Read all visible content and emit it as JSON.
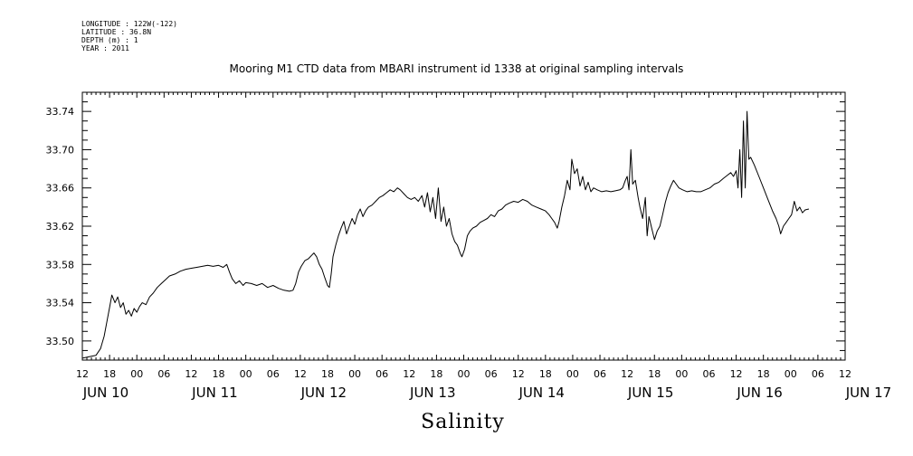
{
  "header": {
    "longitude": "LONGITUDE : 122W(-122)",
    "latitude": "LATITUDE : 36.8N",
    "depth": "DEPTH (m) : 1",
    "year": "YEAR : 2011"
  },
  "chart_data": {
    "type": "line",
    "title": "Mooring M1 CTD data from MBARI instrument id 1338 at original sampling intervals",
    "xlabel": "Salinity",
    "ylabel": "",
    "x_unit": "hours since 2011-06-10 12:00 (ticks every 6 h)",
    "xlim": [
      0,
      168
    ],
    "ylim": [
      33.48,
      33.76
    ],
    "yticks": [
      33.5,
      33.54,
      33.58,
      33.62,
      33.66,
      33.7,
      33.74
    ],
    "ytick_labels": [
      "33.50",
      "33.54",
      "33.58",
      "33.62",
      "33.66",
      "33.70",
      "33.74"
    ],
    "hour_tick_labels": [
      "12",
      "18",
      "00",
      "06",
      "12",
      "18",
      "00",
      "06",
      "12",
      "18",
      "00",
      "06",
      "12",
      "18",
      "00",
      "06",
      "12",
      "18",
      "00",
      "06",
      "12",
      "18",
      "00",
      "06",
      "12",
      "18",
      "00",
      "06",
      "12"
    ],
    "day_labels": [
      {
        "label": "JUN 10",
        "hour": 0
      },
      {
        "label": "JUN 11",
        "hour": 24
      },
      {
        "label": "JUN 12",
        "hour": 48
      },
      {
        "label": "JUN 13",
        "hour": 72
      },
      {
        "label": "JUN 14",
        "hour": 96
      },
      {
        "label": "JUN 15",
        "hour": 120
      },
      {
        "label": "JUN 16",
        "hour": 144
      },
      {
        "label": "JUN 17",
        "hour": 168
      }
    ],
    "grid": false,
    "series": [
      {
        "name": "",
        "points": [
          [
            0.0,
            33.482
          ],
          [
            2.0,
            33.484
          ],
          [
            3.0,
            33.485
          ],
          [
            4.0,
            33.492
          ],
          [
            4.8,
            33.505
          ],
          [
            5.4,
            33.52
          ],
          [
            6.0,
            33.535
          ],
          [
            6.5,
            33.548
          ],
          [
            7.2,
            33.54
          ],
          [
            7.8,
            33.546
          ],
          [
            8.4,
            33.535
          ],
          [
            9.0,
            33.54
          ],
          [
            9.6,
            33.528
          ],
          [
            10.2,
            33.532
          ],
          [
            10.8,
            33.526
          ],
          [
            11.4,
            33.534
          ],
          [
            12.0,
            33.53
          ],
          [
            12.6,
            33.536
          ],
          [
            13.2,
            33.54
          ],
          [
            14.0,
            33.538
          ],
          [
            14.8,
            33.546
          ],
          [
            15.6,
            33.55
          ],
          [
            16.5,
            33.556
          ],
          [
            17.4,
            33.56
          ],
          [
            18.3,
            33.564
          ],
          [
            19.2,
            33.568
          ],
          [
            20.4,
            33.57
          ],
          [
            21.6,
            33.573
          ],
          [
            22.8,
            33.575
          ],
          [
            24.0,
            33.576
          ],
          [
            25.2,
            33.577
          ],
          [
            26.4,
            33.578
          ],
          [
            27.6,
            33.579
          ],
          [
            28.8,
            33.578
          ],
          [
            30.0,
            33.579
          ],
          [
            31.0,
            33.577
          ],
          [
            31.8,
            33.58
          ],
          [
            32.4,
            33.572
          ],
          [
            33.0,
            33.565
          ],
          [
            33.8,
            33.56
          ],
          [
            34.6,
            33.563
          ],
          [
            35.4,
            33.558
          ],
          [
            36.0,
            33.561
          ],
          [
            37.2,
            33.56
          ],
          [
            38.4,
            33.558
          ],
          [
            39.6,
            33.56
          ],
          [
            40.8,
            33.556
          ],
          [
            42.0,
            33.558
          ],
          [
            43.2,
            33.555
          ],
          [
            44.4,
            33.553
          ],
          [
            45.6,
            33.552
          ],
          [
            46.4,
            33.553
          ],
          [
            47.0,
            33.56
          ],
          [
            47.6,
            33.572
          ],
          [
            48.2,
            33.578
          ],
          [
            49.0,
            33.584
          ],
          [
            49.8,
            33.586
          ],
          [
            50.6,
            33.59
          ],
          [
            51.0,
            33.592
          ],
          [
            51.6,
            33.588
          ],
          [
            52.2,
            33.58
          ],
          [
            52.8,
            33.575
          ],
          [
            53.4,
            33.566
          ],
          [
            54.0,
            33.558
          ],
          [
            54.4,
            33.556
          ],
          [
            54.8,
            33.57
          ],
          [
            55.2,
            33.588
          ],
          [
            55.8,
            33.6
          ],
          [
            56.4,
            33.61
          ],
          [
            57.0,
            33.618
          ],
          [
            57.6,
            33.625
          ],
          [
            58.2,
            33.612
          ],
          [
            58.8,
            33.62
          ],
          [
            59.4,
            33.628
          ],
          [
            60.0,
            33.622
          ],
          [
            60.6,
            33.632
          ],
          [
            61.2,
            33.638
          ],
          [
            61.8,
            33.63
          ],
          [
            62.4,
            33.636
          ],
          [
            63.0,
            33.64
          ],
          [
            63.8,
            33.642
          ],
          [
            64.6,
            33.646
          ],
          [
            65.4,
            33.65
          ],
          [
            66.2,
            33.652
          ],
          [
            67.0,
            33.655
          ],
          [
            67.8,
            33.658
          ],
          [
            68.6,
            33.656
          ],
          [
            69.4,
            33.66
          ],
          [
            70.0,
            33.658
          ],
          [
            70.8,
            33.654
          ],
          [
            71.6,
            33.65
          ],
          [
            72.4,
            33.648
          ],
          [
            73.2,
            33.65
          ],
          [
            74.0,
            33.646
          ],
          [
            74.8,
            33.652
          ],
          [
            75.4,
            33.64
          ],
          [
            76.0,
            33.655
          ],
          [
            76.6,
            33.635
          ],
          [
            77.2,
            33.65
          ],
          [
            77.8,
            33.628
          ],
          [
            78.4,
            33.66
          ],
          [
            79.0,
            33.625
          ],
          [
            79.6,
            33.64
          ],
          [
            80.2,
            33.62
          ],
          [
            80.8,
            33.628
          ],
          [
            81.4,
            33.612
          ],
          [
            82.0,
            33.604
          ],
          [
            82.6,
            33.6
          ],
          [
            83.2,
            33.592
          ],
          [
            83.6,
            33.588
          ],
          [
            84.2,
            33.596
          ],
          [
            84.8,
            33.61
          ],
          [
            85.4,
            33.615
          ],
          [
            86.0,
            33.618
          ],
          [
            86.8,
            33.62
          ],
          [
            87.6,
            33.624
          ],
          [
            88.4,
            33.626
          ],
          [
            89.2,
            33.628
          ],
          [
            90.0,
            33.632
          ],
          [
            90.8,
            33.63
          ],
          [
            91.6,
            33.636
          ],
          [
            92.4,
            33.638
          ],
          [
            93.2,
            33.642
          ],
          [
            94.0,
            33.644
          ],
          [
            95.0,
            33.646
          ],
          [
            96.0,
            33.645
          ],
          [
            97.0,
            33.648
          ],
          [
            98.0,
            33.646
          ],
          [
            99.0,
            33.642
          ],
          [
            100.0,
            33.64
          ],
          [
            101.0,
            33.638
          ],
          [
            102.0,
            33.636
          ],
          [
            102.8,
            33.632
          ],
          [
            103.4,
            33.628
          ],
          [
            104.0,
            33.624
          ],
          [
            104.6,
            33.618
          ],
          [
            105.0,
            33.625
          ],
          [
            105.6,
            33.64
          ],
          [
            106.2,
            33.652
          ],
          [
            106.8,
            33.668
          ],
          [
            107.4,
            33.658
          ],
          [
            107.8,
            33.69
          ],
          [
            108.4,
            33.675
          ],
          [
            109.0,
            33.68
          ],
          [
            109.6,
            33.662
          ],
          [
            110.2,
            33.672
          ],
          [
            110.8,
            33.658
          ],
          [
            111.4,
            33.666
          ],
          [
            112.0,
            33.656
          ],
          [
            112.6,
            33.66
          ],
          [
            113.4,
            33.658
          ],
          [
            114.4,
            33.656
          ],
          [
            115.4,
            33.657
          ],
          [
            116.4,
            33.656
          ],
          [
            117.4,
            33.657
          ],
          [
            118.4,
            33.658
          ],
          [
            119.0,
            33.66
          ],
          [
            119.6,
            33.668
          ],
          [
            120.0,
            33.672
          ],
          [
            120.4,
            33.658
          ],
          [
            120.8,
            33.7
          ],
          [
            121.2,
            33.664
          ],
          [
            121.8,
            33.668
          ],
          [
            122.4,
            33.65
          ],
          [
            122.8,
            33.64
          ],
          [
            123.4,
            33.628
          ],
          [
            124.0,
            33.65
          ],
          [
            124.4,
            33.61
          ],
          [
            124.8,
            33.63
          ],
          [
            125.4,
            33.618
          ],
          [
            126.0,
            33.606
          ],
          [
            126.6,
            33.615
          ],
          [
            127.2,
            33.62
          ],
          [
            127.8,
            33.632
          ],
          [
            128.4,
            33.645
          ],
          [
            129.0,
            33.655
          ],
          [
            129.6,
            33.662
          ],
          [
            130.2,
            33.668
          ],
          [
            130.8,
            33.664
          ],
          [
            131.4,
            33.66
          ],
          [
            132.2,
            33.658
          ],
          [
            133.2,
            33.656
          ],
          [
            134.2,
            33.657
          ],
          [
            135.2,
            33.656
          ],
          [
            136.2,
            33.656
          ],
          [
            137.2,
            33.658
          ],
          [
            138.2,
            33.66
          ],
          [
            139.2,
            33.664
          ],
          [
            140.2,
            33.666
          ],
          [
            141.2,
            33.67
          ],
          [
            142.0,
            33.673
          ],
          [
            142.8,
            33.676
          ],
          [
            143.4,
            33.672
          ],
          [
            144.0,
            33.678
          ],
          [
            144.4,
            33.66
          ],
          [
            144.8,
            33.7
          ],
          [
            145.2,
            33.65
          ],
          [
            145.6,
            33.73
          ],
          [
            146.0,
            33.66
          ],
          [
            146.4,
            33.74
          ],
          [
            146.8,
            33.69
          ],
          [
            147.2,
            33.692
          ],
          [
            148.0,
            33.684
          ],
          [
            149.0,
            33.672
          ],
          [
            150.0,
            33.66
          ],
          [
            151.0,
            33.648
          ],
          [
            152.0,
            33.636
          ],
          [
            152.8,
            33.628
          ],
          [
            153.4,
            33.62
          ],
          [
            153.8,
            33.612
          ],
          [
            154.4,
            33.62
          ],
          [
            155.0,
            33.624
          ],
          [
            155.6,
            33.628
          ],
          [
            156.2,
            33.632
          ],
          [
            156.8,
            33.646
          ],
          [
            157.4,
            33.636
          ],
          [
            158.0,
            33.64
          ],
          [
            158.6,
            33.634
          ],
          [
            159.2,
            33.637
          ],
          [
            160.0,
            33.638
          ]
        ]
      }
    ]
  }
}
